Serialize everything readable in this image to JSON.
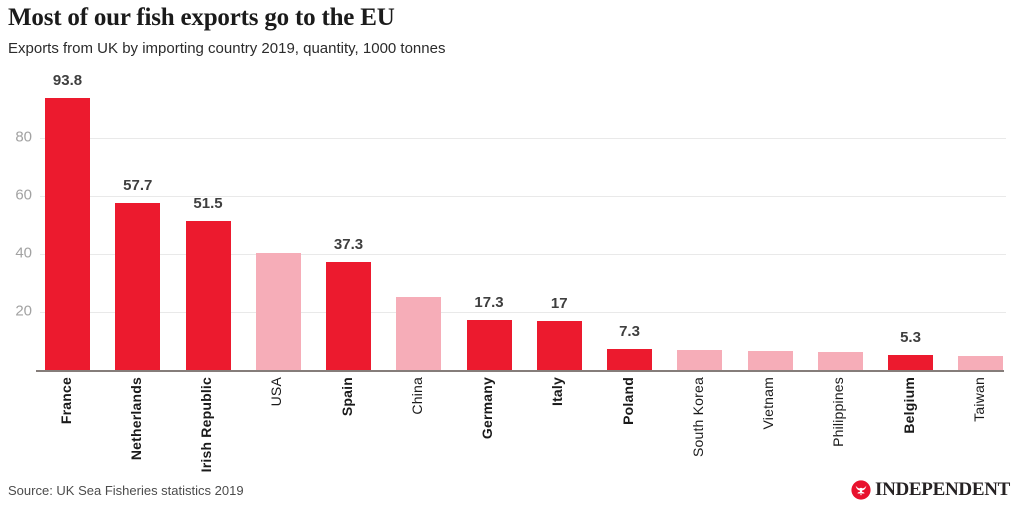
{
  "chart_data": {
    "type": "bar",
    "title": "Most of our fish exports go to the EU",
    "subtitle": "Exports from UK by importing country 2019, quantity, 1000 tonnes",
    "ylabel": "",
    "xlabel": "",
    "ylim": [
      0,
      100
    ],
    "yticks": [
      20,
      40,
      60,
      80
    ],
    "grid": "horizontal",
    "legend_position": "none",
    "categories": [
      "France",
      "Netherlands",
      "Irish Republic",
      "USA",
      "Spain",
      "China",
      "Germany",
      "Italy",
      "Poland",
      "South Korea",
      "Vietnam",
      "Philippines",
      "Belgium",
      "Taiwan"
    ],
    "values": [
      93.8,
      57.7,
      51.5,
      40.2,
      37.3,
      25.2,
      17.3,
      17,
      7.3,
      7.0,
      6.4,
      6.1,
      5.3,
      4.9
    ],
    "bars": [
      {
        "category": "France",
        "value": 93.8,
        "label": "93.8",
        "eu": true
      },
      {
        "category": "Netherlands",
        "value": 57.7,
        "label": "57.7",
        "eu": true
      },
      {
        "category": "Irish Republic",
        "value": 51.5,
        "label": "51.5",
        "eu": true
      },
      {
        "category": "USA",
        "value": 40.2,
        "label": "",
        "eu": false
      },
      {
        "category": "Spain",
        "value": 37.3,
        "label": "37.3",
        "eu": true
      },
      {
        "category": "China",
        "value": 25.2,
        "label": "",
        "eu": false
      },
      {
        "category": "Germany",
        "value": 17.3,
        "label": "17.3",
        "eu": true
      },
      {
        "category": "Italy",
        "value": 17,
        "label": "17",
        "eu": true
      },
      {
        "category": "Poland",
        "value": 7.3,
        "label": "7.3",
        "eu": true
      },
      {
        "category": "South Korea",
        "value": 7.0,
        "label": "",
        "eu": false
      },
      {
        "category": "Vietnam",
        "value": 6.4,
        "label": "",
        "eu": false
      },
      {
        "category": "Philippines",
        "value": 6.1,
        "label": "",
        "eu": false
      },
      {
        "category": "Belgium",
        "value": 5.3,
        "label": "5.3",
        "eu": true
      },
      {
        "category": "Taiwan",
        "value": 4.9,
        "label": "",
        "eu": false
      }
    ],
    "colors": {
      "eu_bar": "#ec1a2e",
      "non_eu_bar": "#f6adb8",
      "gridline": "#e9e9e9",
      "axis_line": "#857d7a",
      "tick_label": "#a2a2a2",
      "value_label": "#3f3f3f",
      "category_label": "#1a1a1a"
    }
  },
  "footer": {
    "source": "Source: UK Sea Fisheries statistics 2019",
    "brand": "INDEPENDENT",
    "brand_icon": "independent-eagle-icon",
    "brand_color": "#e8112d"
  }
}
